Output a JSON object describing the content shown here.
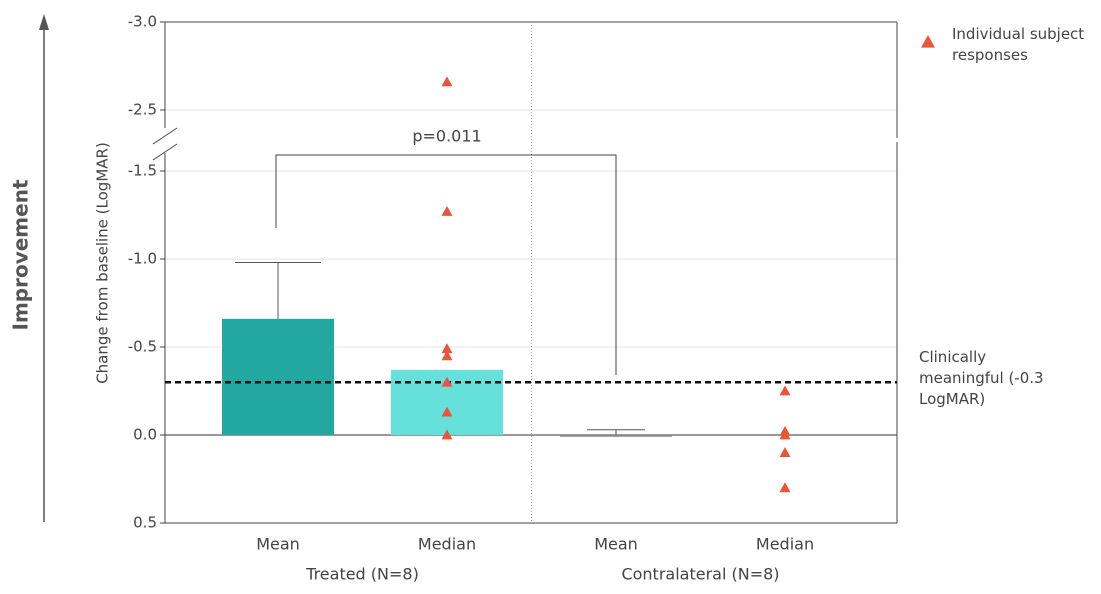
{
  "chart_data": {
    "type": "bar",
    "y_label": "Change from baseline (LogMAR)",
    "side_label": "Improvement",
    "categories": [
      "Mean",
      "Median",
      "Mean",
      "Median"
    ],
    "group_labels": [
      "Treated (N=8)",
      "Contralateral (N=8)"
    ],
    "values": [
      -0.66,
      -0.37,
      0.01,
      null
    ],
    "errors": [
      0.32,
      null,
      0.04,
      null
    ],
    "colors": [
      "#22a8a0",
      "#66e0da",
      "#8a8a8a",
      "#8a8a8a"
    ],
    "points": {
      "name": "Individual subject responses",
      "color": "#e8553a",
      "x": [
        1,
        1,
        1,
        1,
        1,
        1,
        1,
        3,
        3,
        3,
        3,
        3
      ],
      "values": [
        -2.66,
        -1.27,
        -0.49,
        -0.45,
        -0.3,
        -0.13,
        0.0,
        -0.25,
        -0.02,
        0.0,
        0.1,
        0.3
      ]
    },
    "reference_line": {
      "value": -0.3,
      "label": "Clinically meaningful (-0.3 LogMAR)"
    },
    "significance": "p=0.011",
    "ylim": [
      0.5,
      -3.0
    ],
    "y_break": [
      -1.5,
      -2.5
    ],
    "yticks": [
      {
        "value": 0.5,
        "label": "0.5"
      },
      {
        "value": 0,
        "label": "0.0"
      },
      -0.5,
      {
        "value": -1,
        "label": "-1.0"
      },
      -1.5,
      -2.5,
      {
        "value": -3,
        "label": "-3.0"
      }
    ],
    "grid": true,
    "legend": "top-right"
  }
}
